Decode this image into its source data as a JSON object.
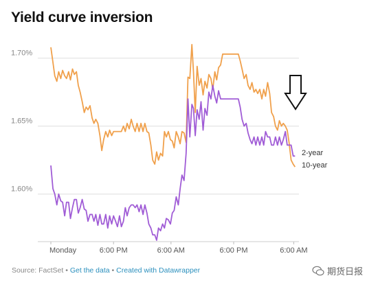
{
  "title": "Yield curve inversion",
  "footer": {
    "source": "Source: FactSet",
    "sep": "•",
    "link1": "Get the data",
    "link2": "Created with Datawrapper"
  },
  "watermark": "期货日报",
  "annotation": {
    "icon": "down-arrow-icon"
  },
  "colors": {
    "two_year": "#F0A04B",
    "ten_year": "#A05CD6",
    "grid": "#dddddd"
  },
  "chart_data": {
    "type": "line",
    "title": "Yield curve inversion",
    "ylim": [
      1.565,
      1.715
    ],
    "xlim": [
      0,
      100
    ],
    "y_ticks": [
      1.6,
      1.65,
      1.7
    ],
    "y_tick_labels": [
      "1.60%",
      "1.65%",
      "1.70%"
    ],
    "x_ticks": [
      {
        "x": 5,
        "label": "Monday"
      },
      {
        "x": 29,
        "label": "6:00 PM"
      },
      {
        "x": 51,
        "label": "6:00 AM"
      },
      {
        "x": 75,
        "label": "6:00 PM"
      },
      {
        "x": 98,
        "label": "6:00 AM"
      }
    ],
    "grid": true,
    "series": [
      {
        "name": "2-year",
        "color": "#F0A04B",
        "points": [
          [
            5,
            1.708
          ],
          [
            5.8,
            1.697
          ],
          [
            6.5,
            1.687
          ],
          [
            7.3,
            1.683
          ],
          [
            8,
            1.69
          ],
          [
            8.8,
            1.685
          ],
          [
            9.5,
            1.691
          ],
          [
            10.3,
            1.687
          ],
          [
            11,
            1.685
          ],
          [
            11.8,
            1.69
          ],
          [
            12.5,
            1.684
          ],
          [
            13.3,
            1.692
          ],
          [
            14,
            1.688
          ],
          [
            14.8,
            1.69
          ],
          [
            15.5,
            1.68
          ],
          [
            16.2,
            1.675
          ],
          [
            17,
            1.668
          ],
          [
            17.8,
            1.66
          ],
          [
            18.5,
            1.664
          ],
          [
            19.2,
            1.662
          ],
          [
            20,
            1.665
          ],
          [
            20.8,
            1.656
          ],
          [
            21.5,
            1.652
          ],
          [
            22.2,
            1.655
          ],
          [
            23,
            1.652
          ],
          [
            23.8,
            1.643
          ],
          [
            24.5,
            1.632
          ],
          [
            25.2,
            1.64
          ],
          [
            26,
            1.646
          ],
          [
            26.8,
            1.642
          ],
          [
            27.5,
            1.647
          ],
          [
            28.3,
            1.643
          ],
          [
            29,
            1.646
          ],
          [
            29.8,
            1.646
          ],
          [
            30.5,
            1.646
          ],
          [
            31.3,
            1.646
          ],
          [
            32,
            1.646
          ],
          [
            32.8,
            1.65
          ],
          [
            33.5,
            1.646
          ],
          [
            34.2,
            1.652
          ],
          [
            35,
            1.648
          ],
          [
            35.8,
            1.655
          ],
          [
            36.5,
            1.65
          ],
          [
            37.3,
            1.646
          ],
          [
            38,
            1.652
          ],
          [
            38.8,
            1.646
          ],
          [
            39.5,
            1.652
          ],
          [
            40.3,
            1.646
          ],
          [
            41,
            1.652
          ],
          [
            41.8,
            1.646
          ],
          [
            42.5,
            1.645
          ],
          [
            43.3,
            1.636
          ],
          [
            44,
            1.625
          ],
          [
            44.8,
            1.622
          ],
          [
            45.5,
            1.631
          ],
          [
            46.2,
            1.625
          ],
          [
            47,
            1.63
          ],
          [
            47.8,
            1.628
          ],
          [
            48.5,
            1.646
          ],
          [
            49.2,
            1.642
          ],
          [
            50,
            1.646
          ],
          [
            50.8,
            1.64
          ],
          [
            51.5,
            1.639
          ],
          [
            52.2,
            1.634
          ],
          [
            53,
            1.646
          ],
          [
            53.8,
            1.642
          ],
          [
            54.5,
            1.637
          ],
          [
            55.2,
            1.646
          ],
          [
            56,
            1.645
          ],
          [
            56.8,
            1.638
          ],
          [
            57.5,
            1.686
          ],
          [
            58.2,
            1.685
          ],
          [
            59,
            1.71
          ],
          [
            59.6,
            1.69
          ],
          [
            60.3,
            1.66
          ],
          [
            61,
            1.694
          ],
          [
            61.8,
            1.68
          ],
          [
            62.5,
            1.685
          ],
          [
            63.3,
            1.673
          ],
          [
            64,
            1.683
          ],
          [
            64.8,
            1.678
          ],
          [
            65.5,
            1.688
          ],
          [
            66.3,
            1.685
          ],
          [
            67,
            1.677
          ],
          [
            67.8,
            1.69
          ],
          [
            68.5,
            1.684
          ],
          [
            69.2,
            1.693
          ],
          [
            70,
            1.695
          ],
          [
            70.8,
            1.703
          ],
          [
            71.5,
            1.703
          ],
          [
            72.3,
            1.703
          ],
          [
            73,
            1.703
          ],
          [
            73.8,
            1.703
          ],
          [
            74.5,
            1.703
          ],
          [
            75.2,
            1.703
          ],
          [
            76,
            1.703
          ],
          [
            76.8,
            1.703
          ],
          [
            77.5,
            1.698
          ],
          [
            78.2,
            1.692
          ],
          [
            79,
            1.685
          ],
          [
            79.8,
            1.688
          ],
          [
            80.5,
            1.68
          ],
          [
            81.3,
            1.677
          ],
          [
            82,
            1.682
          ],
          [
            82.8,
            1.675
          ],
          [
            83.5,
            1.677
          ],
          [
            84.2,
            1.674
          ],
          [
            85,
            1.677
          ],
          [
            85.8,
            1.67
          ],
          [
            86.5,
            1.677
          ],
          [
            87.2,
            1.672
          ],
          [
            88,
            1.682
          ],
          [
            88.8,
            1.674
          ],
          [
            89.5,
            1.66
          ],
          [
            90.3,
            1.657
          ],
          [
            91,
            1.65
          ],
          [
            91.8,
            1.647
          ],
          [
            92.5,
            1.654
          ],
          [
            93.3,
            1.65
          ],
          [
            94,
            1.652
          ],
          [
            94.8,
            1.65
          ],
          [
            95.5,
            1.647
          ],
          [
            96.2,
            1.638
          ],
          [
            97,
            1.625
          ],
          [
            97.8,
            1.622
          ],
          [
            98.5,
            1.62
          ]
        ]
      },
      {
        "name": "10-year",
        "color": "#A05CD6",
        "points": [
          [
            5,
            1.621
          ],
          [
            5.8,
            1.604
          ],
          [
            6.5,
            1.6
          ],
          [
            7.3,
            1.592
          ],
          [
            8,
            1.6
          ],
          [
            8.8,
            1.595
          ],
          [
            9.5,
            1.594
          ],
          [
            10.3,
            1.584
          ],
          [
            11,
            1.594
          ],
          [
            11.8,
            1.594
          ],
          [
            12.5,
            1.582
          ],
          [
            13.3,
            1.59
          ],
          [
            14,
            1.596
          ],
          [
            14.8,
            1.596
          ],
          [
            15.5,
            1.586
          ],
          [
            16.2,
            1.59
          ],
          [
            17,
            1.596
          ],
          [
            17.8,
            1.589
          ],
          [
            18.5,
            1.588
          ],
          [
            19.2,
            1.58
          ],
          [
            20,
            1.585
          ],
          [
            20.8,
            1.585
          ],
          [
            21.5,
            1.58
          ],
          [
            22.2,
            1.585
          ],
          [
            23,
            1.577
          ],
          [
            23.8,
            1.585
          ],
          [
            24.5,
            1.578
          ],
          [
            25.2,
            1.578
          ],
          [
            26,
            1.585
          ],
          [
            26.8,
            1.575
          ],
          [
            27.5,
            1.584
          ],
          [
            28.3,
            1.578
          ],
          [
            29,
            1.584
          ],
          [
            29.8,
            1.58
          ],
          [
            30.5,
            1.576
          ],
          [
            31.3,
            1.584
          ],
          [
            32,
            1.576
          ],
          [
            32.8,
            1.58
          ],
          [
            33.5,
            1.59
          ],
          [
            34.2,
            1.584
          ],
          [
            35,
            1.59
          ],
          [
            35.8,
            1.592
          ],
          [
            36.5,
            1.592
          ],
          [
            37.3,
            1.59
          ],
          [
            38,
            1.592
          ],
          [
            38.8,
            1.587
          ],
          [
            39.5,
            1.592
          ],
          [
            40.3,
            1.585
          ],
          [
            41,
            1.592
          ],
          [
            41.8,
            1.586
          ],
          [
            42.5,
            1.578
          ],
          [
            43.3,
            1.575
          ],
          [
            44,
            1.57
          ],
          [
            44.8,
            1.57
          ],
          [
            45.5,
            1.566
          ],
          [
            46.2,
            1.575
          ],
          [
            47,
            1.573
          ],
          [
            47.8,
            1.578
          ],
          [
            48.5,
            1.575
          ],
          [
            49.2,
            1.582
          ],
          [
            50,
            1.581
          ],
          [
            50.8,
            1.578
          ],
          [
            51.5,
            1.586
          ],
          [
            52.2,
            1.588
          ],
          [
            53,
            1.598
          ],
          [
            53.8,
            1.592
          ],
          [
            54.5,
            1.604
          ],
          [
            55.2,
            1.614
          ],
          [
            56,
            1.61
          ],
          [
            56.8,
            1.63
          ],
          [
            57.5,
            1.67
          ],
          [
            58.2,
            1.642
          ],
          [
            59,
            1.666
          ],
          [
            59.6,
            1.663
          ],
          [
            60.3,
            1.643
          ],
          [
            61,
            1.662
          ],
          [
            61.8,
            1.655
          ],
          [
            62.5,
            1.668
          ],
          [
            63.3,
            1.647
          ],
          [
            64,
            1.663
          ],
          [
            64.8,
            1.658
          ],
          [
            65.5,
            1.675
          ],
          [
            66.3,
            1.67
          ],
          [
            67,
            1.68
          ],
          [
            67.8,
            1.672
          ],
          [
            68.5,
            1.667
          ],
          [
            69.2,
            1.676
          ],
          [
            70,
            1.67
          ],
          [
            70.8,
            1.67
          ],
          [
            71.5,
            1.67
          ],
          [
            72.3,
            1.67
          ],
          [
            73,
            1.67
          ],
          [
            73.8,
            1.67
          ],
          [
            74.5,
            1.67
          ],
          [
            75.2,
            1.67
          ],
          [
            76,
            1.67
          ],
          [
            76.8,
            1.67
          ],
          [
            77.5,
            1.664
          ],
          [
            78.2,
            1.655
          ],
          [
            79,
            1.65
          ],
          [
            79.8,
            1.652
          ],
          [
            80.5,
            1.645
          ],
          [
            81.3,
            1.64
          ],
          [
            82,
            1.637
          ],
          [
            82.8,
            1.642
          ],
          [
            83.5,
            1.636
          ],
          [
            84.2,
            1.642
          ],
          [
            85,
            1.636
          ],
          [
            85.8,
            1.642
          ],
          [
            86.5,
            1.636
          ],
          [
            87.2,
            1.646
          ],
          [
            88,
            1.642
          ],
          [
            88.8,
            1.642
          ],
          [
            89.5,
            1.636
          ],
          [
            90.3,
            1.636
          ],
          [
            91,
            1.642
          ],
          [
            91.8,
            1.636
          ],
          [
            92.5,
            1.642
          ],
          [
            93.3,
            1.636
          ],
          [
            94,
            1.64
          ],
          [
            94.8,
            1.646
          ],
          [
            95.5,
            1.636
          ],
          [
            96.2,
            1.636
          ],
          [
            97,
            1.636
          ],
          [
            97.8,
            1.628
          ],
          [
            98.5,
            1.628
          ]
        ]
      }
    ],
    "series_labels": [
      "2-year",
      "10-year"
    ]
  }
}
